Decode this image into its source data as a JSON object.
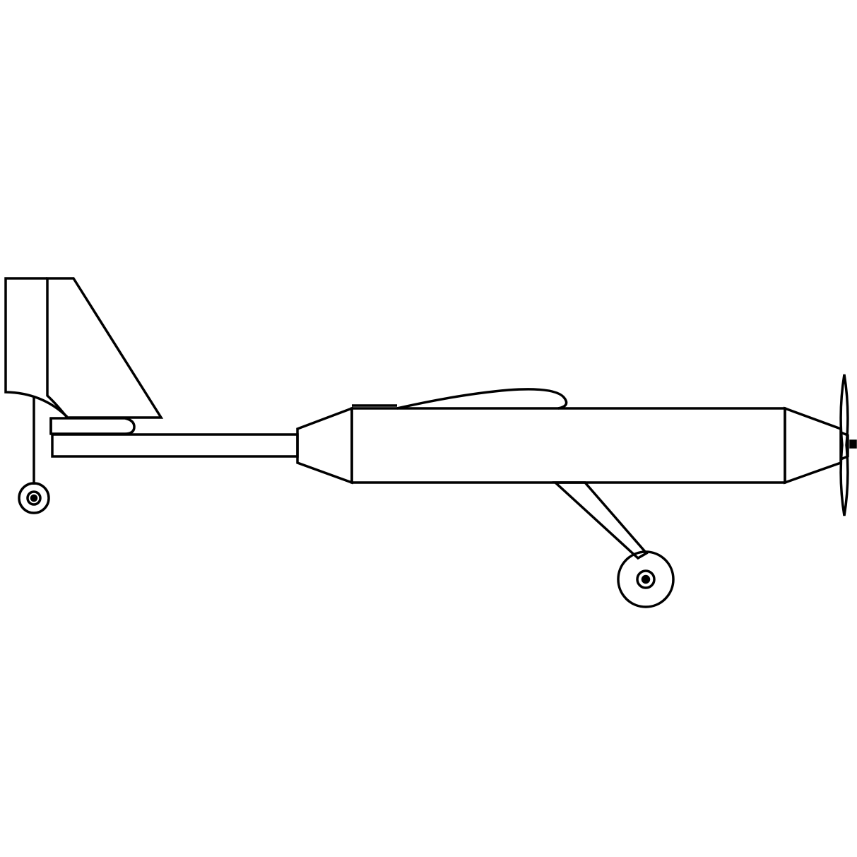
{
  "diagram": {
    "subject": "airplane-side-view",
    "colors": {
      "background": "#ffffff",
      "stroke": "#000000"
    },
    "parts": [
      "vertical-stabilizer",
      "rudder",
      "horizontal-stabilizer",
      "tail-boom",
      "fuselage-rear-cone",
      "fuselage",
      "canopy",
      "nose-cone",
      "propeller",
      "main-landing-gear",
      "main-wheel",
      "tail-wheel-strut",
      "tail-wheel"
    ]
  }
}
